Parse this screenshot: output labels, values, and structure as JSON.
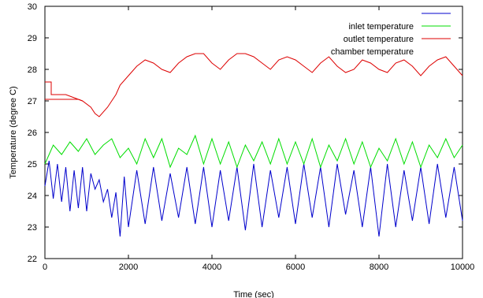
{
  "chart_data": {
    "type": "line",
    "title": "",
    "xlabel": "Time (sec)",
    "ylabel": "Temperature (degree C)",
    "xlim": [
      0,
      10000
    ],
    "ylim": [
      22,
      30
    ],
    "xticks": [
      0,
      2000,
      4000,
      6000,
      8000,
      10000
    ],
    "yticks": [
      22,
      23,
      24,
      25,
      26,
      27,
      28,
      29,
      30
    ],
    "grid": false,
    "legend_position": "top-right",
    "legend_entries": [
      "",
      "inlet temperature",
      "outlet temperature",
      "chamber temperature"
    ],
    "series": [
      {
        "key": "blue",
        "color": "#0000cc",
        "x": [
          0,
          100,
          200,
          300,
          400,
          500,
          600,
          700,
          800,
          900,
          1000,
          1100,
          1200,
          1300,
          1400,
          1500,
          1600,
          1700,
          1800,
          1900,
          2000,
          2200,
          2400,
          2600,
          2800,
          3000,
          3200,
          3400,
          3600,
          3800,
          4000,
          4200,
          4400,
          4600,
          4800,
          5000,
          5200,
          5400,
          5600,
          5800,
          6000,
          6200,
          6400,
          6600,
          6800,
          7000,
          7200,
          7400,
          7600,
          7800,
          8000,
          8200,
          8400,
          8600,
          8800,
          9000,
          9200,
          9400,
          9600,
          9800,
          10000
        ],
        "y": [
          24.3,
          25.1,
          23.9,
          25.0,
          23.8,
          24.9,
          23.5,
          24.8,
          23.6,
          24.9,
          23.5,
          24.7,
          24.2,
          24.5,
          23.8,
          24.2,
          23.3,
          24.1,
          22.7,
          24.6,
          23.0,
          24.8,
          23.1,
          24.9,
          23.2,
          24.7,
          23.3,
          24.9,
          23.1,
          24.9,
          23.0,
          24.8,
          23.2,
          24.9,
          22.9,
          25.0,
          23.0,
          24.8,
          23.3,
          24.9,
          23.1,
          25.0,
          23.3,
          24.9,
          23.0,
          25.0,
          23.4,
          24.8,
          23.0,
          24.9,
          22.7,
          25.0,
          23.0,
          24.8,
          23.2,
          24.9,
          23.1,
          25.0,
          23.3,
          24.9,
          23.2
        ]
      },
      {
        "key": "green",
        "color": "#00dd00",
        "x": [
          0,
          200,
          400,
          600,
          800,
          1000,
          1200,
          1400,
          1600,
          1800,
          2000,
          2200,
          2400,
          2600,
          2800,
          3000,
          3200,
          3400,
          3600,
          3800,
          4000,
          4200,
          4400,
          4600,
          4800,
          5000,
          5200,
          5400,
          5600,
          5800,
          6000,
          6200,
          6400,
          6600,
          6800,
          7000,
          7200,
          7400,
          7600,
          7800,
          8000,
          8200,
          8400,
          8600,
          8800,
          9000,
          9200,
          9400,
          9600,
          9800,
          10000
        ],
        "y": [
          25.0,
          25.6,
          25.3,
          25.7,
          25.4,
          25.8,
          25.3,
          25.6,
          25.8,
          25.2,
          25.5,
          25.0,
          25.8,
          25.2,
          25.8,
          24.9,
          25.5,
          25.3,
          25.9,
          25.0,
          25.8,
          25.0,
          25.7,
          24.9,
          25.6,
          25.1,
          25.7,
          25.0,
          25.8,
          25.0,
          25.7,
          25.0,
          25.8,
          24.9,
          25.6,
          25.1,
          25.8,
          25.0,
          25.7,
          24.9,
          25.5,
          25.1,
          25.8,
          25.0,
          25.7,
          24.9,
          25.6,
          25.2,
          25.8,
          25.2,
          25.6
        ]
      },
      {
        "key": "red",
        "color": "#dd0000",
        "x": [
          0,
          150,
          150,
          500,
          700,
          900,
          1100,
          1200,
          1300,
          1500,
          1600,
          1700,
          1800,
          2000,
          2200,
          2400,
          2600,
          2800,
          3000,
          3200,
          3400,
          3600,
          3800,
          4000,
          4200,
          4400,
          4600,
          4800,
          5000,
          5200,
          5400,
          5600,
          5800,
          6000,
          6200,
          6400,
          6600,
          6800,
          7000,
          7200,
          7400,
          7600,
          7800,
          8000,
          8200,
          8400,
          8600,
          8800,
          9000,
          9200,
          9400,
          9600,
          9800,
          10000
        ],
        "y": [
          27.6,
          27.6,
          27.2,
          27.2,
          27.1,
          27.0,
          26.8,
          26.6,
          26.5,
          26.8,
          27.0,
          27.2,
          27.5,
          27.8,
          28.1,
          28.3,
          28.2,
          28.0,
          27.9,
          28.2,
          28.4,
          28.5,
          28.5,
          28.2,
          28.0,
          28.3,
          28.5,
          28.5,
          28.4,
          28.2,
          28.0,
          28.3,
          28.4,
          28.3,
          28.1,
          27.9,
          28.2,
          28.4,
          28.1,
          27.9,
          28.0,
          28.3,
          28.2,
          28.0,
          27.9,
          28.2,
          28.3,
          28.1,
          27.8,
          28.1,
          28.3,
          28.4,
          28.1,
          27.8
        ]
      },
      {
        "key": "red-lower",
        "color": "#dd0000",
        "x": [
          0,
          800,
          900
        ],
        "y": [
          27.05,
          27.05,
          27.0
        ]
      }
    ]
  }
}
